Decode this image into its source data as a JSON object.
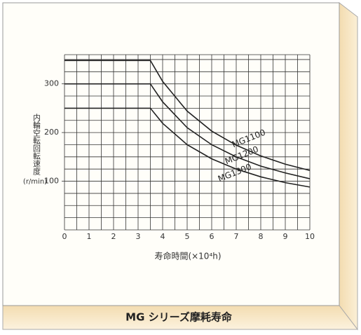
{
  "chart_data": {
    "type": "line",
    "title": "MG シリーズ摩耗寿命",
    "xlabel": "寿命時間(×10⁴h)",
    "ylabel": "内輪空転回転速度",
    "yunit": "(r/min)",
    "x": [
      0,
      3.5,
      4,
      5,
      6,
      7,
      8,
      9,
      10
    ],
    "series": [
      {
        "name": "MG1100",
        "color": "#222222",
        "values": [
          348,
          348,
          305,
          244,
          203,
          174,
          152,
          135,
          122
        ]
      },
      {
        "name": "MG1200",
        "color": "#222222",
        "values": [
          300,
          300,
          263,
          210,
          175,
          150,
          131,
          117,
          105
        ]
      },
      {
        "name": "MG1300",
        "color": "#222222",
        "values": [
          250,
          250,
          219,
          175,
          146,
          125,
          109,
          97,
          88
        ]
      }
    ],
    "xlim": [
      0,
      10
    ],
    "ylim": [
      0,
      360
    ],
    "xticks": [
      0,
      1,
      2,
      3,
      4,
      5,
      6,
      7,
      8,
      9,
      10
    ],
    "yticks": [
      100,
      200,
      300
    ],
    "x_grid": [
      0,
      0.5,
      1,
      1.5,
      2,
      2.5,
      3,
      3.5,
      4,
      4.5,
      5,
      5.5,
      6,
      6.5,
      7,
      7.5,
      8,
      8.5,
      9,
      9.5,
      10
    ],
    "y_grid": [
      0,
      25,
      50,
      75,
      100,
      125,
      150,
      175,
      200,
      225,
      250,
      275,
      300,
      325,
      350,
      360
    ],
    "grid": true
  }
}
